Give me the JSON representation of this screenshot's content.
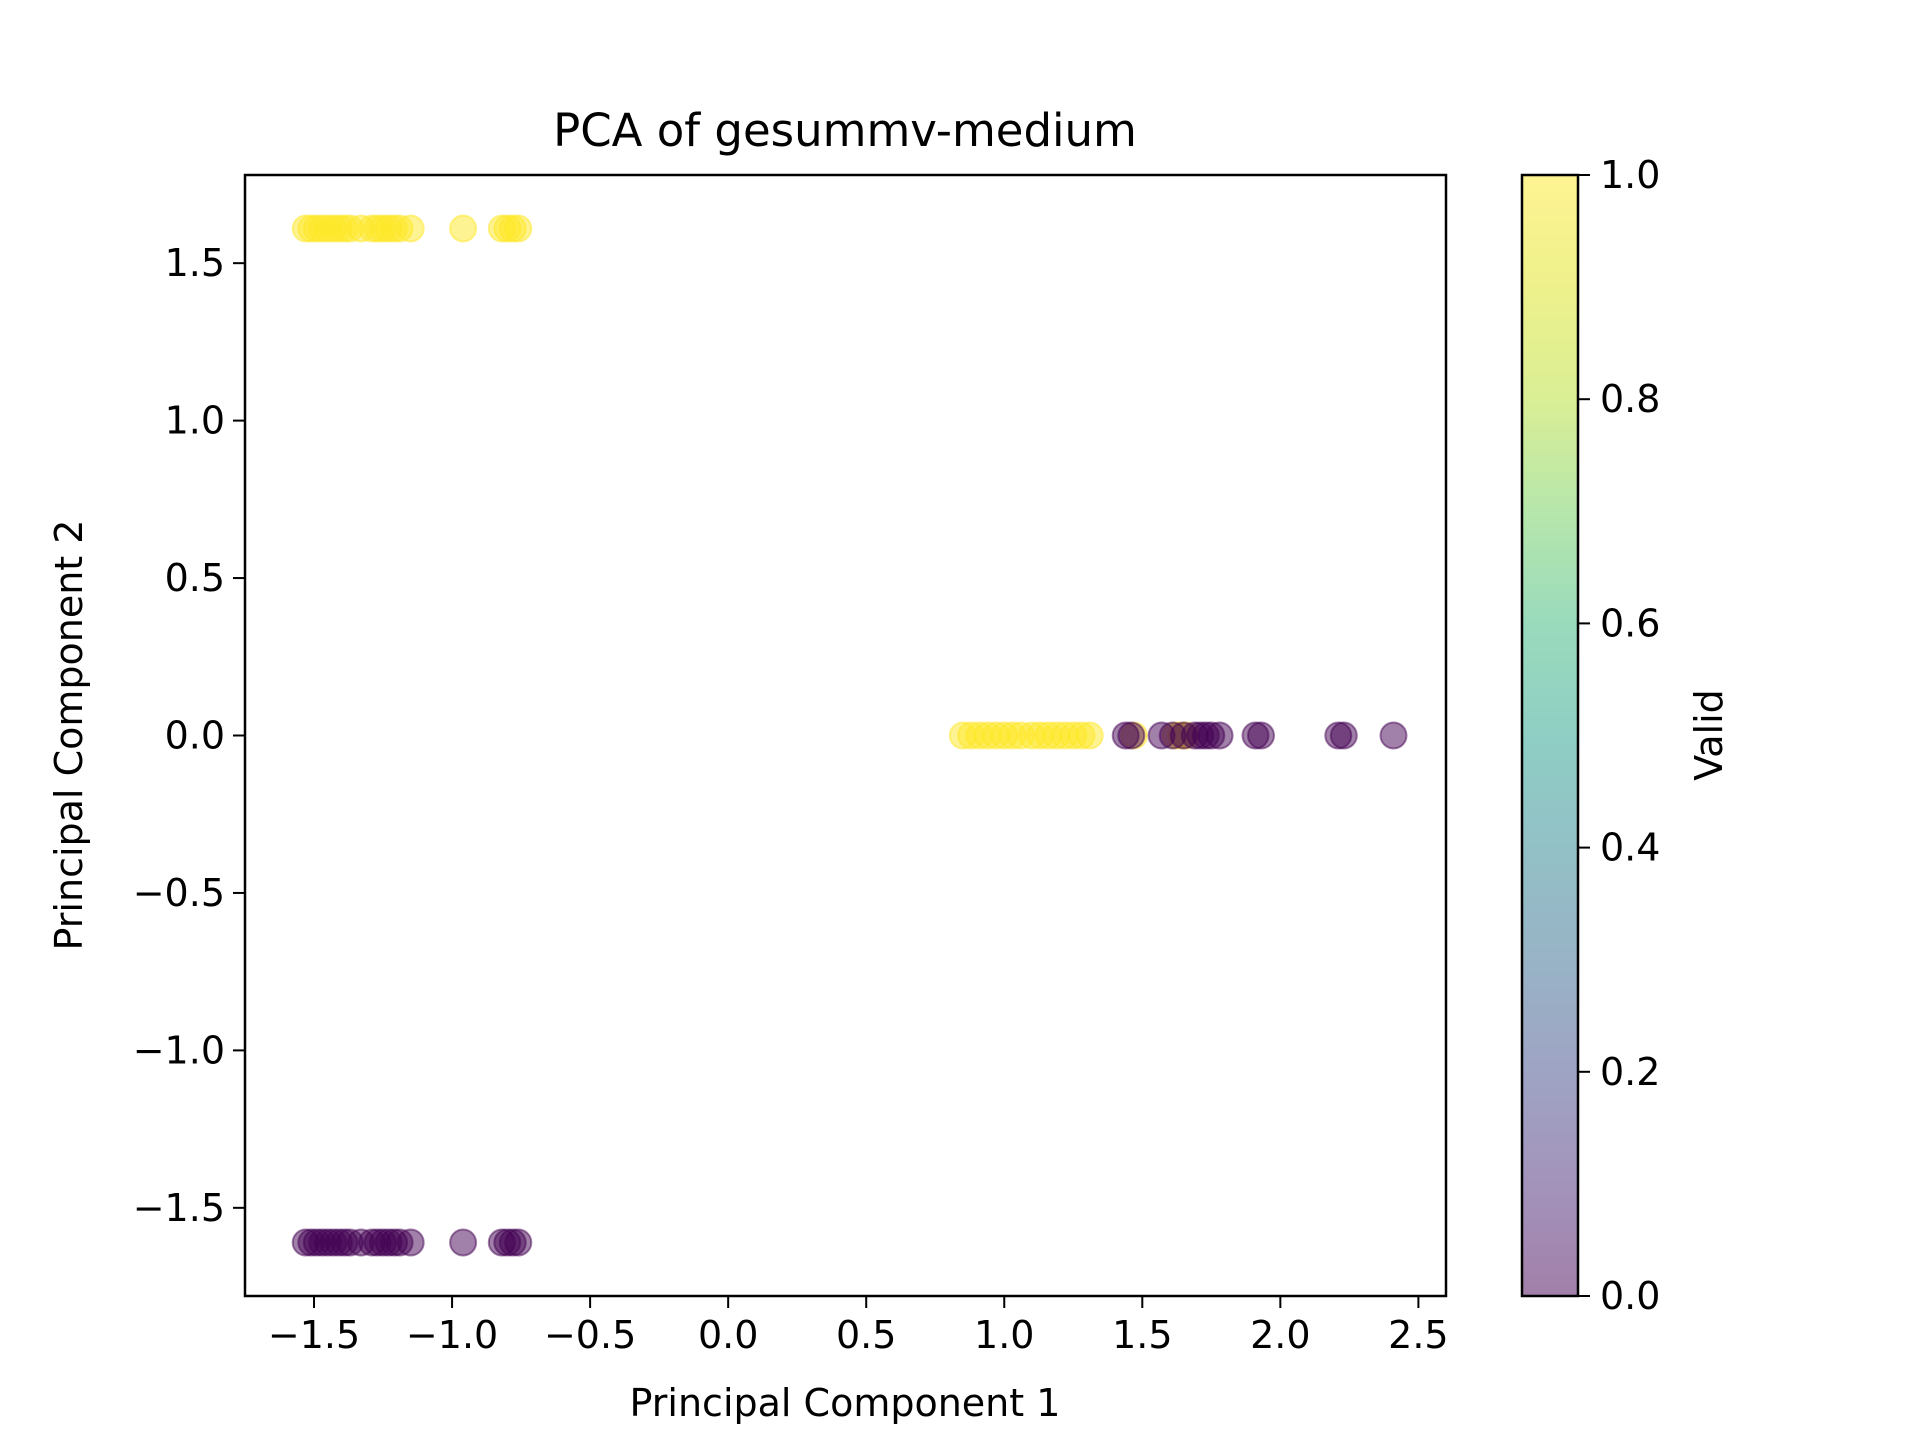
{
  "chart_data": {
    "type": "scatter",
    "title": "PCA of gesummv-medium",
    "xlabel": "Principal Component 1",
    "ylabel": "Principal Component 2",
    "xlim": [
      -1.75,
      2.6
    ],
    "ylim": [
      -1.78,
      1.78
    ],
    "xticks": [
      -1.5,
      -1.0,
      -0.5,
      0.0,
      0.5,
      1.0,
      1.5,
      2.0,
      2.5
    ],
    "xtick_labels": [
      "−1.5",
      "−1.0",
      "−0.5",
      "0.0",
      "0.5",
      "1.0",
      "1.5",
      "2.0",
      "2.5"
    ],
    "yticks": [
      -1.5,
      -1.0,
      -0.5,
      0.0,
      0.5,
      1.0,
      1.5
    ],
    "ytick_labels": [
      "−1.5",
      "−1.0",
      "−0.5",
      "0.0",
      "0.5",
      "1.0",
      "1.5"
    ],
    "grid": false,
    "colorbar": {
      "label": "Valid",
      "range": [
        0.0,
        1.0
      ],
      "ticks": [
        0.0,
        0.2,
        0.4,
        0.6,
        0.8,
        1.0
      ],
      "tick_labels": [
        "0.0",
        "0.2",
        "0.4",
        "0.6",
        "0.8",
        "1.0"
      ],
      "colormap": "viridis",
      "alpha": 0.5
    },
    "colors": {
      "valid": "#fde725",
      "invalid": "#440154"
    },
    "series": [
      {
        "valid": 1,
        "points": [
          [
            -1.53,
            1.61
          ],
          [
            -1.51,
            1.61
          ],
          [
            -1.49,
            1.61
          ],
          [
            -1.47,
            1.61
          ],
          [
            -1.45,
            1.61
          ],
          [
            -1.43,
            1.61
          ],
          [
            -1.41,
            1.61
          ],
          [
            -1.39,
            1.61
          ],
          [
            -1.37,
            1.61
          ],
          [
            -1.33,
            1.61
          ],
          [
            -1.29,
            1.61
          ],
          [
            -1.27,
            1.61
          ],
          [
            -1.25,
            1.61
          ],
          [
            -1.23,
            1.61
          ],
          [
            -1.21,
            1.61
          ],
          [
            -1.19,
            1.61
          ],
          [
            -1.15,
            1.61
          ],
          [
            -0.96,
            1.61
          ],
          [
            -0.82,
            1.61
          ],
          [
            -0.8,
            1.61
          ],
          [
            -0.78,
            1.61
          ],
          [
            -0.76,
            1.61
          ],
          [
            0.85,
            0.0
          ],
          [
            0.88,
            0.0
          ],
          [
            0.91,
            0.0
          ],
          [
            0.94,
            0.0
          ],
          [
            0.97,
            0.0
          ],
          [
            1.0,
            0.0
          ],
          [
            1.03,
            0.0
          ],
          [
            1.06,
            0.0
          ],
          [
            1.1,
            0.0
          ],
          [
            1.13,
            0.0
          ],
          [
            1.16,
            0.0
          ],
          [
            1.19,
            0.0
          ],
          [
            1.22,
            0.0
          ],
          [
            1.25,
            0.0
          ],
          [
            1.28,
            0.0
          ],
          [
            1.31,
            0.0
          ],
          [
            1.47,
            0.0
          ],
          [
            1.62,
            0.0
          ],
          [
            1.64,
            0.0
          ],
          [
            1.66,
            0.0
          ]
        ]
      },
      {
        "valid": 0,
        "points": [
          [
            -1.53,
            -1.61
          ],
          [
            -1.51,
            -1.61
          ],
          [
            -1.49,
            -1.61
          ],
          [
            -1.47,
            -1.61
          ],
          [
            -1.45,
            -1.61
          ],
          [
            -1.43,
            -1.61
          ],
          [
            -1.41,
            -1.61
          ],
          [
            -1.39,
            -1.61
          ],
          [
            -1.37,
            -1.61
          ],
          [
            -1.33,
            -1.61
          ],
          [
            -1.29,
            -1.61
          ],
          [
            -1.27,
            -1.61
          ],
          [
            -1.25,
            -1.61
          ],
          [
            -1.23,
            -1.61
          ],
          [
            -1.21,
            -1.61
          ],
          [
            -1.19,
            -1.61
          ],
          [
            -1.15,
            -1.61
          ],
          [
            -0.96,
            -1.61
          ],
          [
            -0.82,
            -1.61
          ],
          [
            -0.8,
            -1.61
          ],
          [
            -0.78,
            -1.61
          ],
          [
            -0.76,
            -1.61
          ],
          [
            1.44,
            0.0
          ],
          [
            1.46,
            0.0
          ],
          [
            1.57,
            0.0
          ],
          [
            1.61,
            0.0
          ],
          [
            1.65,
            0.0
          ],
          [
            1.69,
            0.0
          ],
          [
            1.71,
            0.0
          ],
          [
            1.73,
            0.0
          ],
          [
            1.75,
            0.0
          ],
          [
            1.78,
            0.0
          ],
          [
            1.91,
            0.0
          ],
          [
            1.93,
            0.0
          ],
          [
            2.21,
            0.0
          ],
          [
            2.23,
            0.0
          ],
          [
            2.41,
            0.0
          ]
        ]
      }
    ]
  }
}
